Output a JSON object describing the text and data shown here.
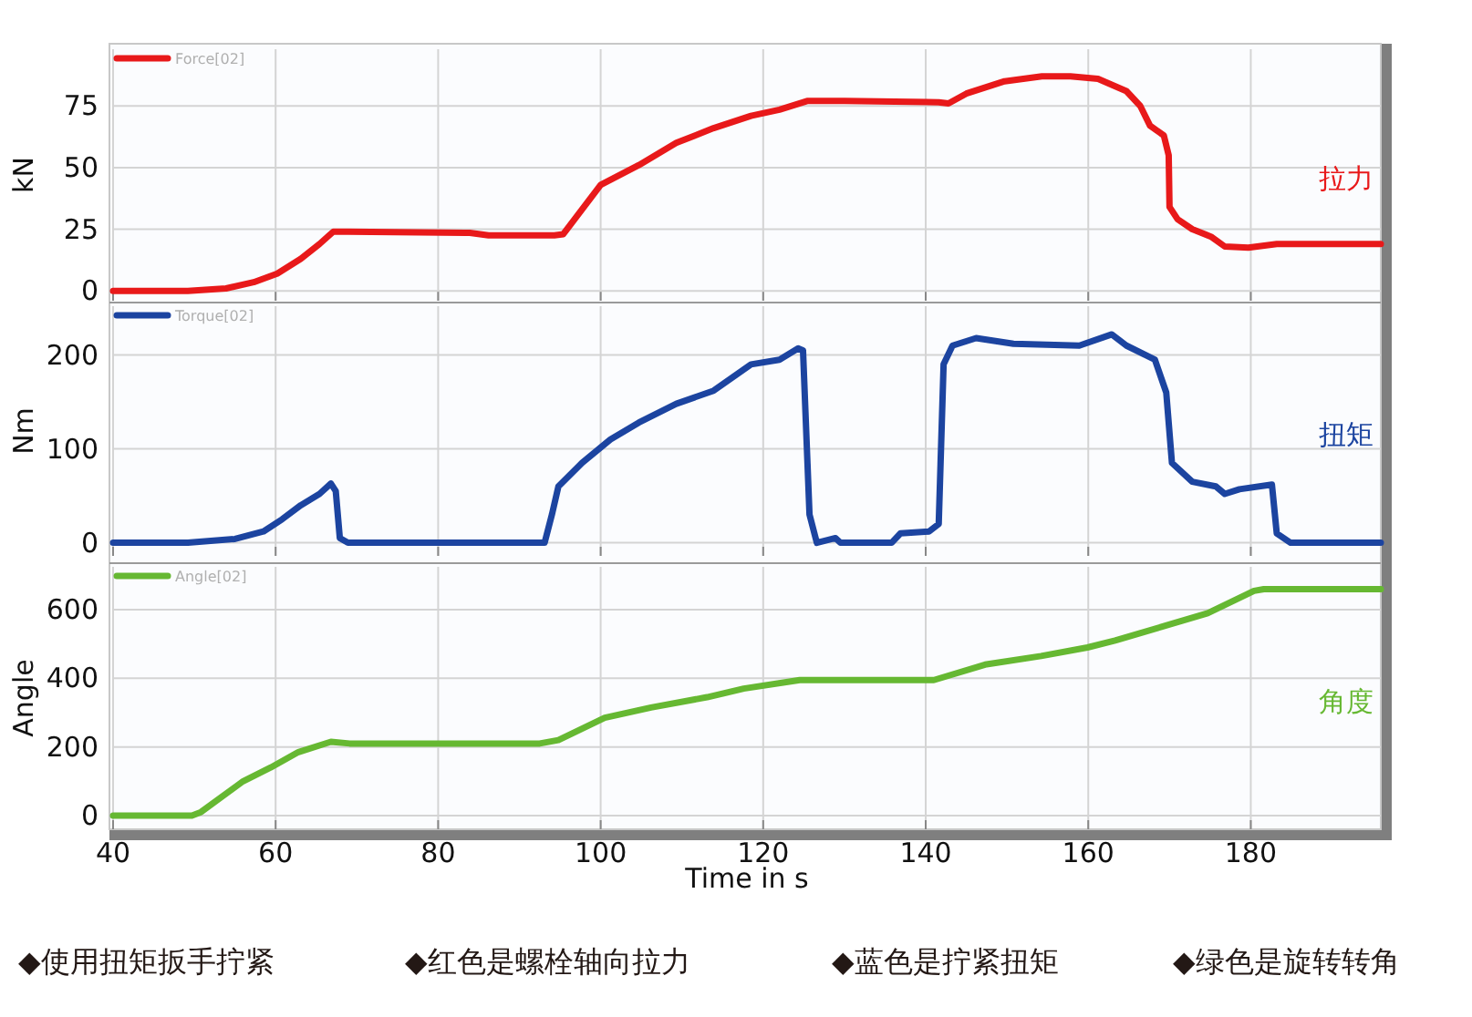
{
  "chart_data": [
    {
      "type": "line",
      "ylabel": "kN",
      "xlim": [
        40,
        196
      ],
      "xticks": [
        40,
        60,
        80,
        100,
        120,
        140,
        160,
        180
      ],
      "ylim": [
        -4,
        98
      ],
      "yticks": [
        0,
        25,
        50,
        75
      ],
      "tick_labels": "y",
      "grid": true,
      "legend": "top left",
      "annotations": [
        "拉力"
      ],
      "series": [
        {
          "name": "Force[02]",
          "color": "#e8191a",
          "x": [
            40,
            49.2,
            53.9,
            57.3,
            60.2,
            63.1,
            65.4,
            67.1,
            68.9,
            83.9,
            86.2,
            94.3,
            95.4,
            100,
            104.7,
            109.3,
            113.9,
            118.5,
            122,
            125.4,
            130,
            141.6,
            142.8,
            145,
            149.7,
            154.3,
            157.8,
            161.2,
            164.7,
            166.4,
            167.6,
            169.3,
            169.9,
            170,
            171,
            172.8,
            175.1,
            176.8,
            179.7,
            183.2,
            196
          ],
          "values": [
            0,
            0,
            1,
            3.5,
            7,
            13,
            19,
            24,
            24,
            23.5,
            22.5,
            22.5,
            23,
            43,
            51,
            60,
            66,
            71,
            73.5,
            77,
            77,
            76.5,
            76,
            80,
            85,
            87,
            87,
            86,
            81,
            75,
            67,
            63,
            55,
            34,
            29,
            25,
            22,
            18,
            17.5,
            19,
            19
          ]
        }
      ]
    },
    {
      "type": "line",
      "ylabel": "Nm",
      "xlim": [
        40,
        196
      ],
      "xticks": [
        40,
        60,
        80,
        100,
        120,
        140,
        160,
        180
      ],
      "ylim": [
        -14,
        252
      ],
      "yticks": [
        0,
        100,
        200
      ],
      "tick_labels": "y",
      "grid": true,
      "legend": "top left",
      "annotations": [
        "扭矩"
      ],
      "series": [
        {
          "name": "Torque[02]",
          "color": "#1c44a0",
          "x": [
            40,
            49.2,
            55,
            58.5,
            60.8,
            63.1,
            65.4,
            66.8,
            67.4,
            67.9,
            68.9,
            93.1,
            94,
            94.8,
            97.7,
            101.2,
            104.7,
            109.3,
            113.9,
            118.5,
            122,
            124.3,
            124.9,
            125.7,
            126.6,
            128.9,
            129.5,
            135.8,
            136.9,
            140.4,
            141.6,
            142.2,
            143.3,
            146.2,
            150.8,
            158.9,
            162.9,
            164.7,
            168.2,
            169.6,
            170.3,
            172.8,
            175.7,
            176.8,
            178.6,
            182.6,
            183.2,
            184.9,
            196
          ],
          "values": [
            0,
            0,
            4,
            12,
            25,
            40,
            52,
            63,
            55,
            5,
            0,
            0,
            30,
            60,
            85,
            110,
            128,
            148,
            162,
            190,
            195,
            207,
            205,
            30,
            0,
            5,
            0,
            0,
            10,
            12,
            20,
            190,
            210,
            218,
            212,
            210,
            222,
            210,
            195,
            160,
            85,
            65,
            60,
            52,
            57,
            62,
            10,
            0,
            0
          ]
        }
      ]
    },
    {
      "type": "line",
      "xlabel": "Time in s",
      "ylabel": "Angle",
      "xlim": [
        40,
        196
      ],
      "xticks": [
        40,
        60,
        80,
        100,
        120,
        140,
        160,
        180
      ],
      "ylim": [
        -40,
        725
      ],
      "yticks": [
        0,
        200,
        400,
        600
      ],
      "grid": true,
      "legend": "top left",
      "annotations": [
        "角度",
        "◆使用扭矩扳手拧紧",
        "◆红色是螺栓轴向拉力",
        "◆蓝色是拧紧扭矩",
        "◆绿色是旋转转角"
      ],
      "series": [
        {
          "name": "Angle[02]",
          "color": "#66b832",
          "x": [
            40,
            49.7,
            50.8,
            56,
            59.4,
            62.8,
            66.8,
            69.1,
            92.5,
            94.8,
            100.5,
            106.2,
            113.1,
            117.6,
            124.5,
            141,
            147.3,
            154.2,
            159.9,
            163.3,
            169,
            174.7,
            180.4,
            181.6,
            196
          ],
          "values": [
            0,
            0,
            10,
            100,
            140,
            185,
            215,
            210,
            210,
            220,
            285,
            315,
            345,
            370,
            395,
            395,
            440,
            465,
            490,
            510,
            550,
            590,
            655,
            660,
            660
          ]
        }
      ]
    }
  ]
}
